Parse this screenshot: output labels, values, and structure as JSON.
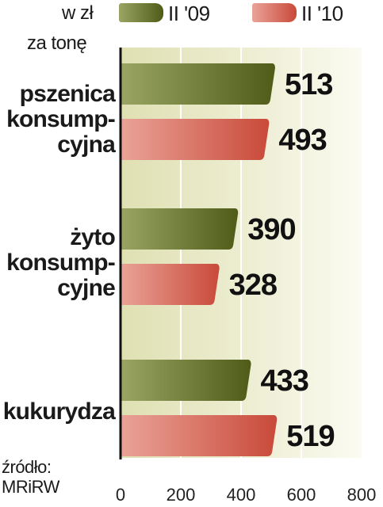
{
  "unit_line1": "w zł",
  "unit_line2": "za tonę",
  "source_line1": "źródło:",
  "source_line2": "MRiRW",
  "chart_data": {
    "type": "bar",
    "orientation": "horizontal",
    "categories": [
      "pszenica\nkonsump-\ncyjna",
      "żyto\nkonsump-\ncyjne",
      "kukurydza"
    ],
    "series": [
      {
        "name": "II '09",
        "values": [
          513,
          390,
          433
        ],
        "color": "#6b7a2c"
      },
      {
        "name": "II '10",
        "values": [
          493,
          328,
          519
        ],
        "color": "#cf5a48"
      }
    ],
    "xlim": [
      0,
      800
    ],
    "xticks": [
      "0",
      "200",
      "400",
      "600",
      "800"
    ],
    "grid": true,
    "legend": "top"
  }
}
